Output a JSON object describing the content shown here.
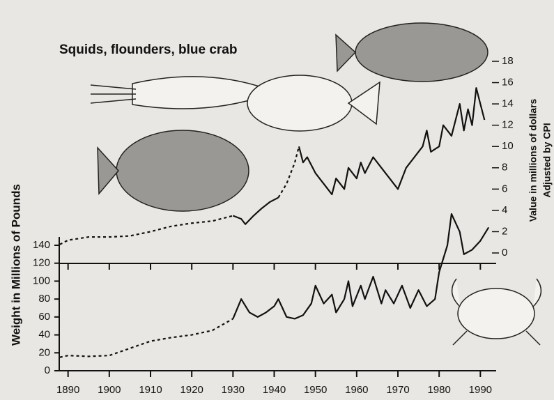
{
  "chart_data": {
    "type": "line",
    "title": "Squids, flounders, blue crab",
    "y_label": "Weight in Millions of Pounds",
    "y2_label": "Value in millions of dollars",
    "y2_sublabel": "Adjusted by CPI",
    "xlim": [
      1886,
      1994
    ],
    "xticks": [
      1890,
      1900,
      1910,
      1920,
      1930,
      1940,
      1950,
      1960,
      1970,
      1980,
      1990
    ],
    "ylim": [
      0,
      140
    ],
    "yticks": [
      0,
      20,
      40,
      60,
      80,
      100,
      120,
      140
    ],
    "y2lim": [
      0,
      18
    ],
    "y2ticks": [
      0,
      2,
      4,
      6,
      8,
      10,
      12,
      14,
      16,
      18
    ],
    "series": [
      {
        "color": "#111111",
        "style": "dashed",
        "x": [
          1888,
          1890,
          1895,
          1900,
          1905,
          1910,
          1915,
          1920,
          1925,
          1930
        ],
        "values": [
          15,
          17,
          16,
          17,
          25,
          33,
          37,
          40,
          45,
          58
        ]
      },
      {
        "color": "#111111",
        "style": "solid",
        "x": [
          1930,
          1932,
          1934,
          1936,
          1938,
          1940,
          1941,
          1943,
          1945,
          1947,
          1949,
          1950,
          1952,
          1954,
          1955,
          1957,
          1958,
          1959,
          1961,
          1962,
          1964,
          1966,
          1967,
          1969,
          1971,
          1973,
          1975,
          1977,
          1979,
          1980,
          1982,
          1983,
          1985,
          1986,
          1988,
          1990,
          1992
        ],
        "values": [
          58,
          80,
          65,
          60,
          65,
          72,
          80,
          60,
          58,
          62,
          75,
          95,
          75,
          85,
          65,
          80,
          100,
          72,
          95,
          80,
          105,
          75,
          90,
          75,
          95,
          70,
          90,
          72,
          80,
          110,
          140,
          175,
          155,
          130,
          135,
          145,
          160
        ]
      },
      {
        "color": "#111111",
        "style": "dashed",
        "axis": "y2",
        "x": [
          1888,
          1890,
          1895,
          1900,
          1905,
          1910,
          1915,
          1920,
          1925,
          1930
        ],
        "values": [
          0.8,
          1.2,
          1.5,
          1.5,
          1.6,
          2,
          2.5,
          2.8,
          3,
          3.5
        ]
      },
      {
        "color": "#111111",
        "style": "solid",
        "axis": "y2",
        "x": [
          1930,
          1932,
          1933,
          1935,
          1937,
          1939,
          1941
        ],
        "values": [
          3.5,
          3.2,
          2.7,
          3.5,
          4.2,
          4.8,
          5.2
        ]
      },
      {
        "color": "#111111",
        "style": "dashed",
        "axis": "y2",
        "x": [
          1941,
          1943,
          1945,
          1946
        ],
        "values": [
          5.2,
          6.5,
          8.5,
          10
        ]
      },
      {
        "color": "#111111",
        "style": "solid",
        "axis": "y2",
        "x": [
          1946,
          1947,
          1948,
          1950,
          1952,
          1954,
          1955,
          1957,
          1958,
          1960,
          1961,
          1962,
          1964,
          1966,
          1968,
          1970,
          1972,
          1974,
          1976,
          1977,
          1978,
          1980,
          1981,
          1983,
          1985,
          1986,
          1987,
          1988,
          1989,
          1990,
          1991
        ],
        "values": [
          10,
          8.5,
          9,
          7.5,
          6.5,
          5.5,
          7,
          6,
          8,
          7,
          8.5,
          7.5,
          9,
          8,
          7,
          6,
          8,
          9,
          10,
          11.5,
          9.5,
          10,
          12,
          11,
          14,
          11.5,
          13.5,
          12,
          15.5,
          14,
          12.5
        ]
      }
    ]
  }
}
